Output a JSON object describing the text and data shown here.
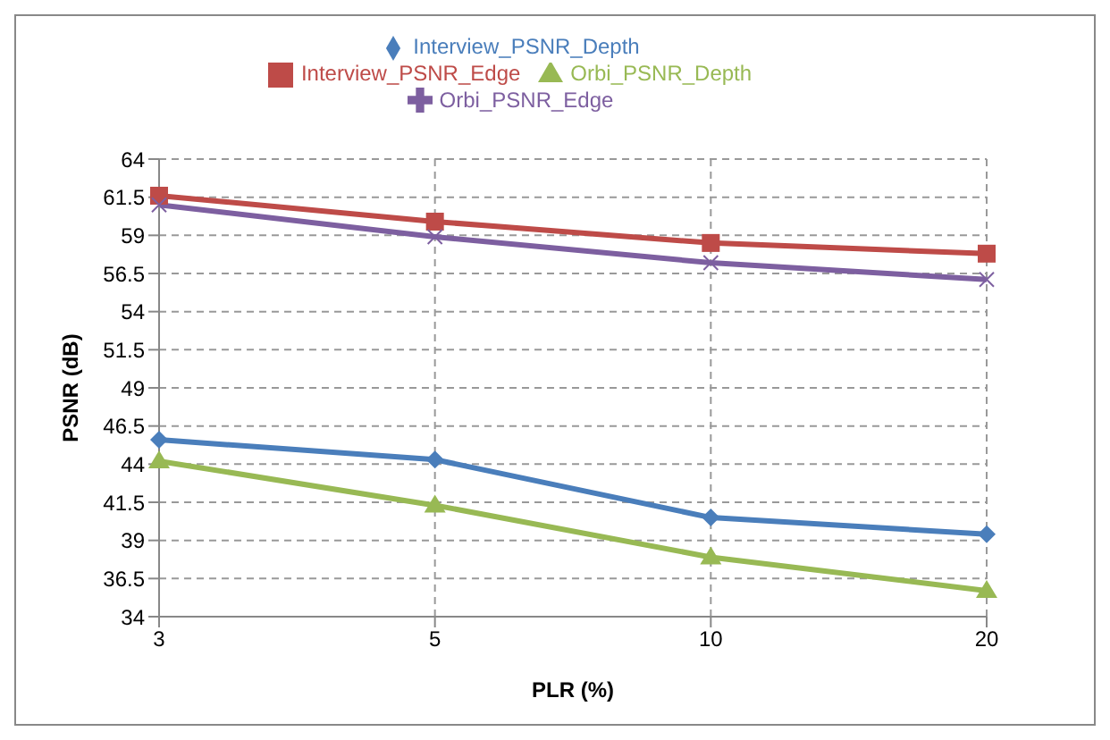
{
  "chart_data": {
    "type": "line",
    "xlabel": "PLR (%)",
    "ylabel": "PSNR (dB)",
    "categories": [
      "3",
      "5",
      "10",
      "20"
    ],
    "series": [
      {
        "name": "Interview_PSNR_Depth",
        "color": "#4a7ebb",
        "marker": "diamond",
        "values": [
          45.6,
          44.3,
          40.5,
          39.4
        ]
      },
      {
        "name": "Interview_PSNR_Edge",
        "color": "#be4b48",
        "marker": "square",
        "values": [
          61.6,
          59.9,
          58.5,
          57.8
        ]
      },
      {
        "name": "Orbi_PSNR_Depth",
        "color": "#98b954",
        "marker": "triangle",
        "values": [
          44.2,
          41.3,
          37.9,
          35.7
        ]
      },
      {
        "name": "Orbi_PSNR_Edge",
        "color": "#7d5fa0",
        "marker": "cross",
        "values": [
          61.0,
          58.9,
          57.2,
          56.1
        ]
      }
    ],
    "ylim": [
      34,
      64
    ],
    "yticks": [
      34,
      36.5,
      39,
      41.5,
      44,
      46.5,
      49,
      51.5,
      54,
      56.5,
      59,
      61.5,
      64
    ],
    "grid": true,
    "legend": "top"
  }
}
